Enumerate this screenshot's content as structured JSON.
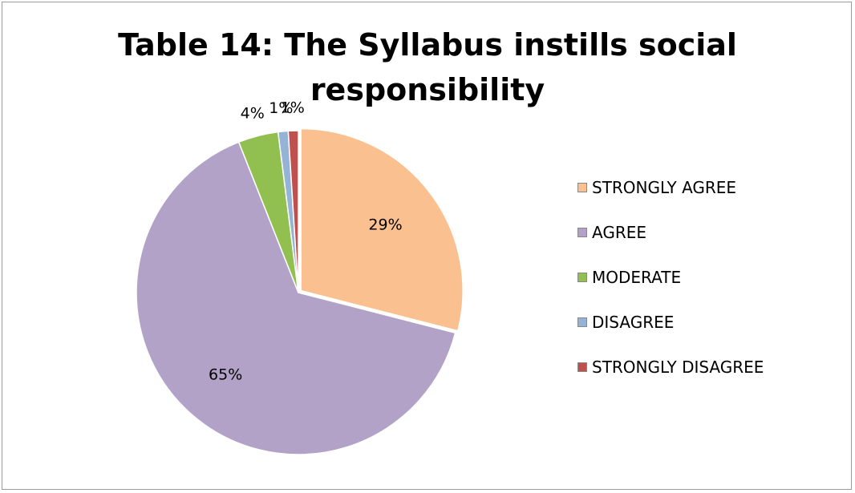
{
  "chart_data": {
    "type": "pie",
    "title_lines": [
      "Table 14: The Syllabus instills social",
      "responsibility"
    ],
    "categories": [
      "STRONGLY AGREE",
      "AGREE",
      "MODERATE",
      "DISAGREE",
      "STRONGLY DISAGREE"
    ],
    "values": [
      29,
      65,
      4,
      1,
      1
    ],
    "data_labels": [
      "29%",
      "65%",
      "4%",
      "1%",
      "1%"
    ],
    "colors": [
      "#fac090",
      "#b3a2c7",
      "#92c050",
      "#95b3d7",
      "#c0504d"
    ],
    "legend": "right",
    "exploded_slice": "STRONGLY AGREE"
  }
}
